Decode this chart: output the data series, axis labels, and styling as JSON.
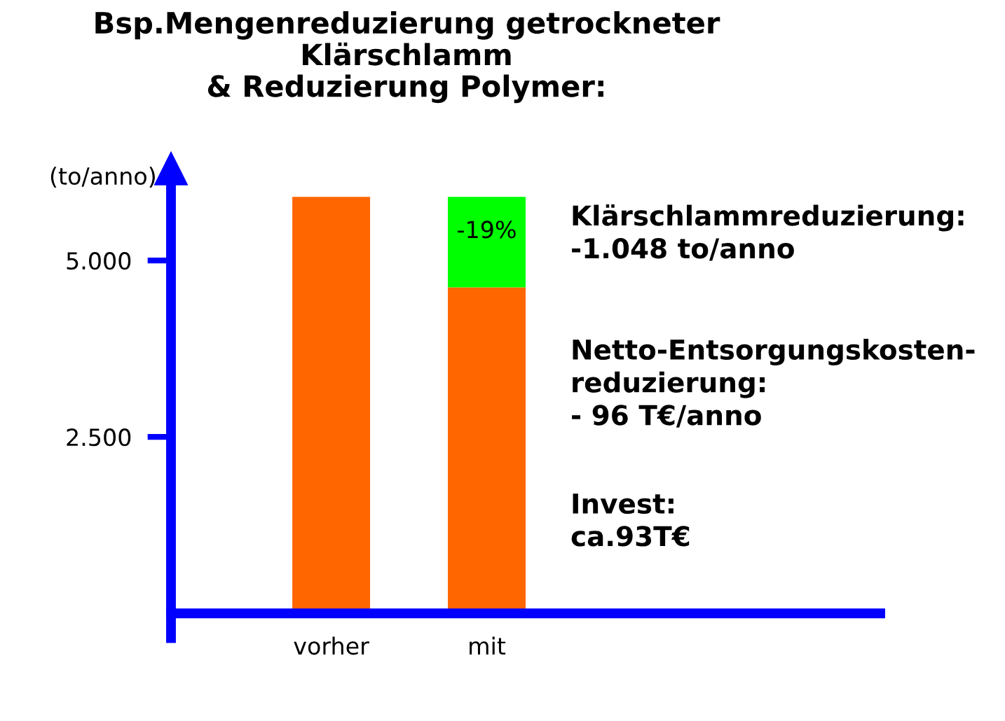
{
  "chart_data": {
    "type": "bar",
    "title": "Bsp.Mengenreduzierung getrockneter\nKlärschlamm\n& Reduzierung Polymer:",
    "ylabel": "(to/anno)",
    "categories": [
      "vorher",
      "mit"
    ],
    "stacked": true,
    "series": [
      {
        "color": "#ff6600",
        "values": [
          5900,
          4620
        ]
      },
      {
        "color": "#00ff00",
        "values": [
          null,
          1280
        ]
      }
    ],
    "ylim": [
      -350,
      6300
    ],
    "yticks": [
      {
        "value": 2500,
        "label": "2.500"
      },
      {
        "value": 5000,
        "label": "5.000"
      }
    ],
    "grid": false,
    "legend": false,
    "annotations": [
      {
        "text": "-19%",
        "x": "mit",
        "y": 5900
      },
      "Klärschlammreduzierung:\n-1.048 to/anno",
      "Netto-Entsorgungskosten-\nreduzierung:\n- 96 T€/anno",
      "Invest:\nca.93T€"
    ]
  }
}
